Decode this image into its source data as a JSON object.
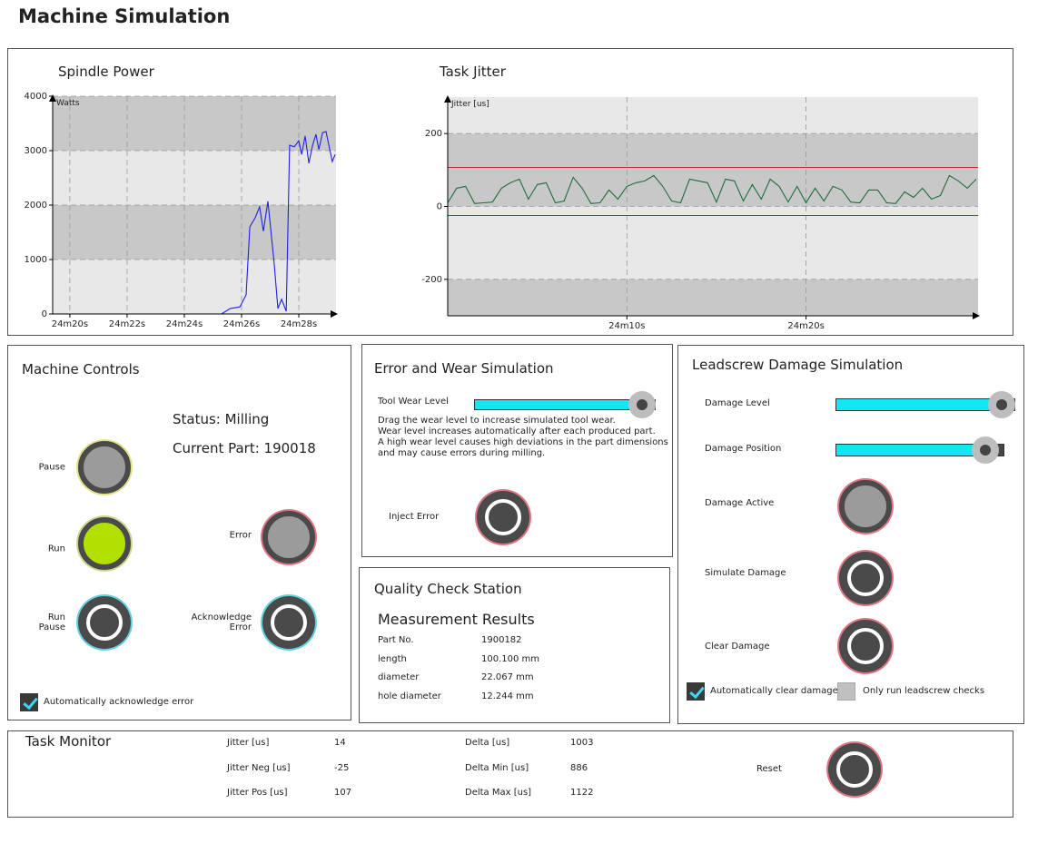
{
  "header": {
    "title": "Machine Simulation"
  },
  "chart_data": [
    {
      "type": "line",
      "title": "Spindle Power",
      "y_label": "Watts",
      "x": [
        1465.3,
        1465.6,
        1465.94,
        1466.16,
        1466.29,
        1466.48,
        1466.63,
        1466.76,
        1466.92,
        1467.14,
        1467.27,
        1467.4,
        1467.56,
        1467.68,
        1467.84,
        1468.0,
        1468.1,
        1468.22,
        1468.35,
        1468.48,
        1468.6,
        1468.7,
        1468.83,
        1468.95,
        1469.08,
        1469.17,
        1469.27
      ],
      "values": [
        0,
        100,
        130,
        350,
        1600,
        1770,
        1970,
        1520,
        2070,
        930,
        100,
        270,
        50,
        3100,
        3070,
        3180,
        2930,
        3270,
        2770,
        3100,
        3300,
        3020,
        3330,
        3350,
        3020,
        2800,
        2930
      ],
      "color": "#2020e8",
      "xlim": [
        1459.4,
        1469.3
      ],
      "xticks": [
        {
          "value": 1460,
          "label": "24m20s"
        },
        {
          "value": 1462,
          "label": "24m22s"
        },
        {
          "value": 1464,
          "label": "24m24s"
        },
        {
          "value": 1466,
          "label": "24m26s"
        },
        {
          "value": 1468,
          "label": "24m28s"
        }
      ],
      "ylim": [
        0,
        4000
      ],
      "yticks": [
        0,
        1000,
        2000,
        3000,
        4000
      ],
      "grid": true,
      "band_colors": [
        "#e8e8e8",
        "#c8c8c8"
      ]
    },
    {
      "type": "line",
      "title": "Task Jitter",
      "y_label": "Jitter [us]",
      "x": [
        1440,
        1440.5,
        1441,
        1441.5,
        1442,
        1442.5,
        1443,
        1443.5,
        1444,
        1444.5,
        1445,
        1445.5,
        1446,
        1446.5,
        1447,
        1447.5,
        1448,
        1448.5,
        1449,
        1449.5,
        1450,
        1450.5,
        1451,
        1451.5,
        1452,
        1452.5,
        1453,
        1453.5,
        1454,
        1454.5,
        1455,
        1455.5,
        1456,
        1456.5,
        1457,
        1457.5,
        1458,
        1458.5,
        1459,
        1459.5,
        1460,
        1460.5,
        1461,
        1461.5,
        1462,
        1462.5,
        1463,
        1463.5,
        1464,
        1464.5,
        1465,
        1465.5,
        1466,
        1466.5,
        1467,
        1467.5,
        1468,
        1468.5,
        1469,
        1469.5
      ],
      "values": [
        10,
        50,
        55,
        8,
        10,
        12,
        50,
        65,
        75,
        20,
        60,
        65,
        10,
        15,
        80,
        50,
        8,
        10,
        45,
        20,
        55,
        65,
        70,
        85,
        55,
        15,
        10,
        75,
        70,
        65,
        12,
        75,
        70,
        15,
        60,
        20,
        75,
        55,
        12,
        55,
        10,
        50,
        15,
        55,
        45,
        12,
        10,
        45,
        45,
        10,
        8,
        40,
        25,
        50,
        20,
        30,
        85,
        70,
        50,
        75
      ],
      "color": "#1d6e3c",
      "xlim": [
        1440,
        1469.6
      ],
      "xticks": [
        {
          "value": 1450,
          "label": "24m10s"
        },
        {
          "value": 1460,
          "label": "24m20s"
        }
      ],
      "ylim": [
        -300,
        300
      ],
      "yticks": [
        -200,
        0,
        200
      ],
      "thresholds": [
        107,
        -25
      ],
      "threshold_color": "#c4282e",
      "grid": true,
      "band_colors": [
        "#c8c8c8",
        "#e8e8e8"
      ]
    }
  ],
  "machine_controls": {
    "title": "Machine Controls",
    "status": "Status: Milling",
    "current_part": "Current Part: 190018",
    "pause": "Pause",
    "run": "Run",
    "run_pause": "Run\nPause",
    "error": "Error",
    "acknowledge_error": "Acknowledge\nError",
    "auto_acknowledge": {
      "label": "Automatically acknowledge error",
      "checked": true
    }
  },
  "error_wear": {
    "title": "Error and Wear Simulation",
    "tool_wear_level": {
      "label": "Tool Wear Level",
      "value": 93
    },
    "description": [
      "Drag the wear level to increase simulated tool wear.",
      "Wear level increases automatically after each produced part.",
      "A high wear level causes high deviations in the part dimensions",
      "and may cause errors during milling."
    ],
    "inject_error": "Inject Error"
  },
  "quality_check": {
    "title": "Quality Check Station",
    "subtitle": "Measurement Results",
    "rows": [
      [
        "Part No.",
        "1900182"
      ],
      [
        "length",
        "100.100 mm"
      ],
      [
        "diameter",
        "22.067 mm"
      ],
      [
        "hole diameter",
        "12.244 mm"
      ]
    ]
  },
  "leadscrew": {
    "title": "Leadscrew Damage Simulation",
    "damage_level": {
      "label": "Damage Level",
      "value": 93
    },
    "damage_position": {
      "label": "Damage Position",
      "value": 89
    },
    "damage_active": "Damage Active",
    "simulate_damage": "Simulate Damage",
    "clear_damage": "Clear Damage",
    "auto_clear": {
      "label": "Automatically clear damage",
      "checked": true
    },
    "only_leadscrew": {
      "label": "Only run leadscrew checks",
      "checked": false
    }
  },
  "task_monitor": {
    "title": "Task Monitor",
    "stats": [
      [
        "Jitter [us]",
        14
      ],
      [
        "Jitter Neg [us]",
        -25
      ],
      [
        "Jitter Pos [us]",
        107
      ],
      [
        "Delta [us]",
        1003
      ],
      [
        "Delta Min [us]",
        886
      ],
      [
        "Delta Max [us]",
        1122
      ]
    ],
    "reset": "Reset"
  }
}
